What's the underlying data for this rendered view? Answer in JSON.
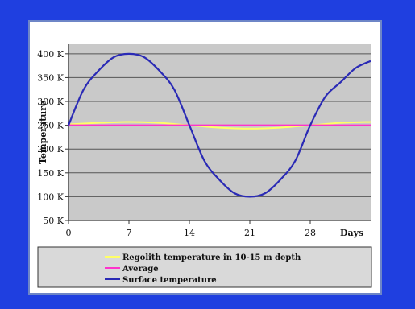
{
  "chart_data": {
    "type": "line",
    "title": "",
    "xlabel": "Days",
    "ylabel": "Temperature",
    "xlim": [
      0,
      35
    ],
    "ylim": [
      50,
      420
    ],
    "xticks": [
      0,
      7,
      14,
      21,
      28
    ],
    "x_tick_labels": [
      "0",
      "7",
      "14",
      "21",
      "28"
    ],
    "yticks": [
      50,
      100,
      150,
      200,
      250,
      300,
      350,
      400
    ],
    "y_tick_labels": [
      "50 K",
      "100 K",
      "150 K",
      "200 K",
      "250 K",
      "300 K",
      "350 K",
      "400 K"
    ],
    "grid": true,
    "legend_position": "bottom",
    "series": [
      {
        "name": "Regolith temperature in 10-15 m depth",
        "color": "#ffff66",
        "x": [
          0,
          3.5,
          7,
          10.5,
          14,
          17.5,
          21,
          24.5,
          28,
          31.5,
          35
        ],
        "values": [
          252,
          255,
          257,
          255,
          250,
          245,
          243,
          245,
          250,
          255,
          257
        ]
      },
      {
        "name": "Average",
        "color": "#ff33cc",
        "x": [
          0,
          7,
          14,
          21,
          28,
          35
        ],
        "values": [
          250,
          250,
          250,
          250,
          250,
          250
        ]
      },
      {
        "name": "Surface temperature",
        "color": "#2a2ab5",
        "x": [
          0,
          1.75,
          3.5,
          5.25,
          7,
          8.75,
          10.5,
          12.25,
          14,
          15.75,
          17.5,
          19.25,
          21,
          22.75,
          24.5,
          26.25,
          28,
          29.75,
          31.5,
          33.25,
          35
        ],
        "values": [
          250,
          325,
          365,
          393,
          400,
          393,
          365,
          325,
          250,
          175,
          135,
          107,
          100,
          107,
          135,
          175,
          250,
          310,
          340,
          370,
          385
        ]
      }
    ]
  }
}
